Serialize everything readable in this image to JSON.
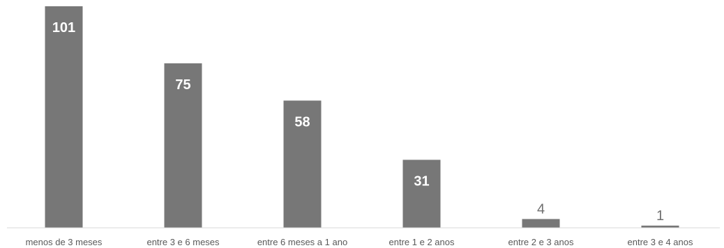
{
  "chart_data": {
    "type": "bar",
    "title": "",
    "xlabel": "",
    "ylabel": "",
    "categories": [
      "menos de 3 meses",
      "entre 3 e 6 meses",
      "entre 6 meses a 1 ano",
      "entre 1 e 2 anos",
      "entre 2 e 3 anos",
      "entre 3 e 4 anos"
    ],
    "values": [
      101,
      75,
      58,
      31,
      4,
      1
    ],
    "ylim": [
      0,
      101
    ],
    "grid": false,
    "legend": "none",
    "colors": {
      "bar": "#777777",
      "label_inside": "#ffffff",
      "label_outside": "#6f6f6f",
      "tick_label": "#595959",
      "baseline": "#d9d9d9"
    }
  }
}
